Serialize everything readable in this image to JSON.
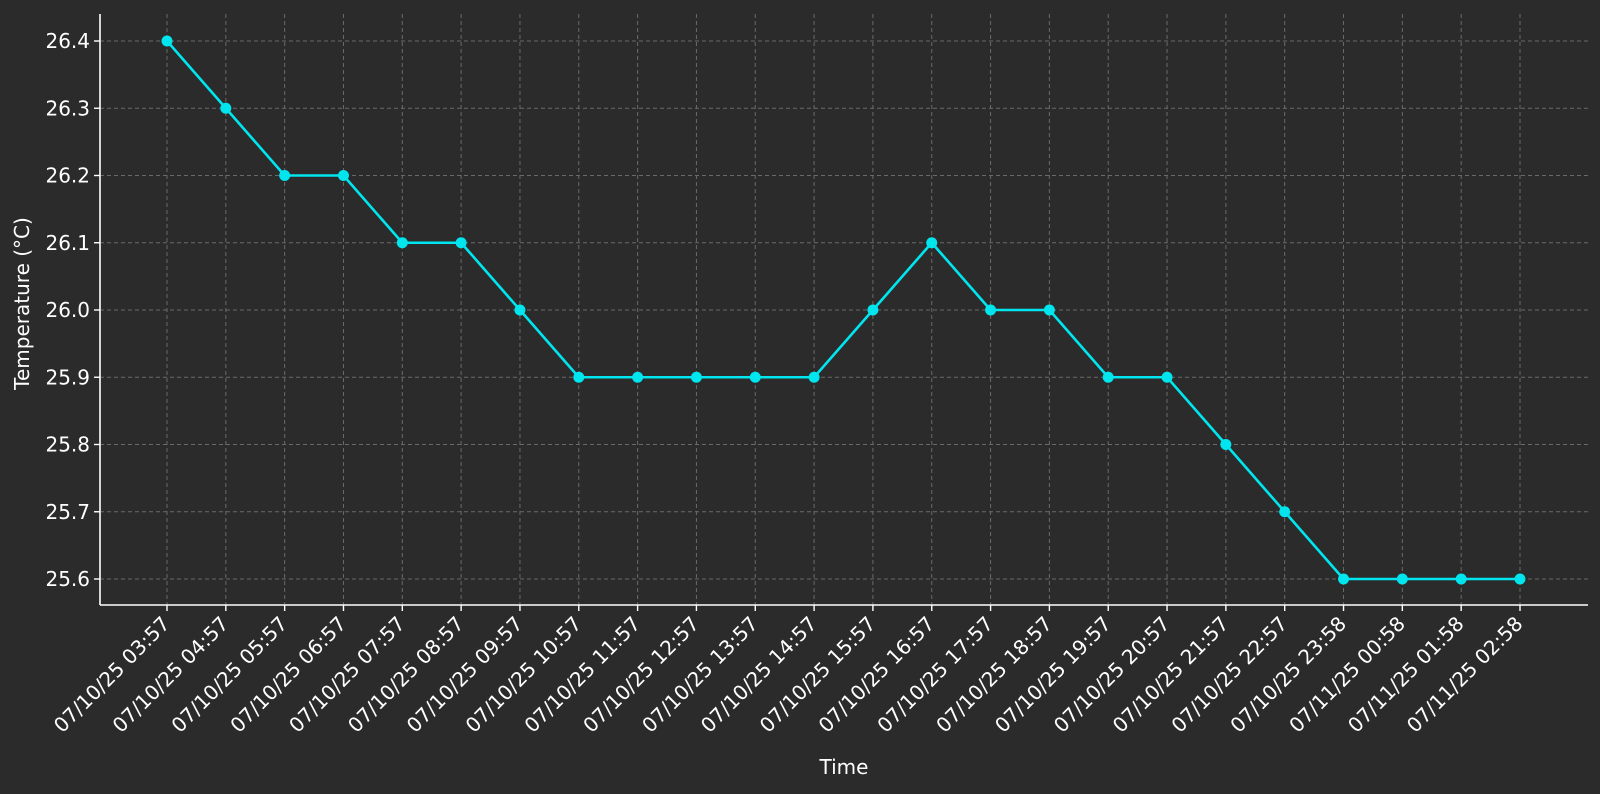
{
  "chart_data": {
    "type": "line",
    "title": "",
    "xlabel": "Time",
    "ylabel": "Temperature (°C)",
    "categories": [
      "07/10/25 03:57",
      "07/10/25 04:57",
      "07/10/25 05:57",
      "07/10/25 06:57",
      "07/10/25 07:57",
      "07/10/25 08:57",
      "07/10/25 09:57",
      "07/10/25 10:57",
      "07/10/25 11:57",
      "07/10/25 12:57",
      "07/10/25 13:57",
      "07/10/25 14:57",
      "07/10/25 15:57",
      "07/10/25 16:57",
      "07/10/25 17:57",
      "07/10/25 18:57",
      "07/10/25 19:57",
      "07/10/25 20:57",
      "07/10/25 21:57",
      "07/10/25 22:57",
      "07/10/25 23:58",
      "07/11/25 00:58",
      "07/11/25 01:58",
      "07/11/25 02:58"
    ],
    "series": [
      {
        "values": [
          26.4,
          26.3,
          26.2,
          26.2,
          26.1,
          26.1,
          26.0,
          25.9,
          25.9,
          25.9,
          25.9,
          25.9,
          26.0,
          26.1,
          26.0,
          26.0,
          25.9,
          25.9,
          25.8,
          25.7,
          25.6,
          25.6,
          25.6,
          25.6
        ],
        "color": "#00e5ee"
      }
    ],
    "yticks": [
      "25.6",
      "25.7",
      "25.8",
      "25.9",
      "26.0",
      "26.1",
      "26.2",
      "26.3",
      "26.4"
    ],
    "ylim": [
      25.56,
      26.44
    ],
    "grid": true,
    "legend": "none",
    "colors": {
      "background": "#2b2b2b",
      "text": "#ffffff",
      "grid": "#6a6a6a",
      "line": "#00e5ee"
    }
  }
}
